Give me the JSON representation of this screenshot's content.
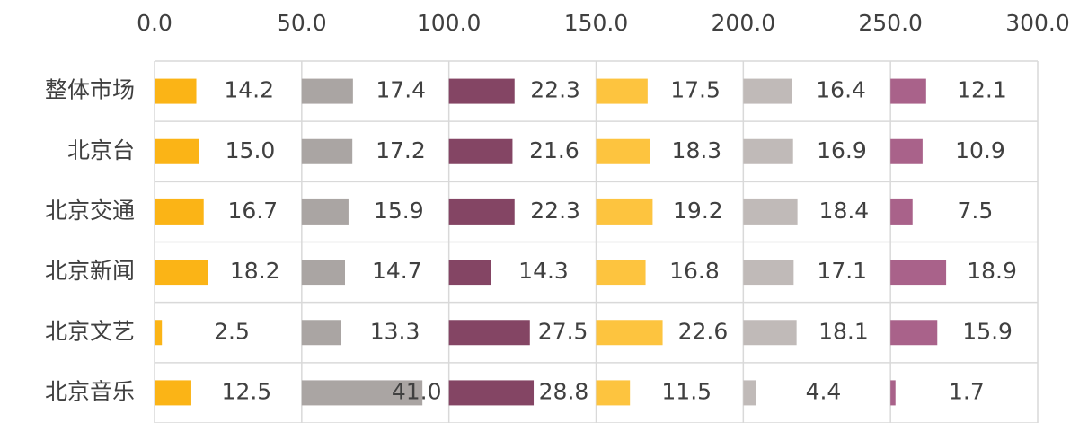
{
  "chart_data": {
    "type": "bar",
    "categories": [
      "整体市场",
      "北京台",
      "北京交通",
      "北京新闻",
      "北京文艺",
      "北京音乐"
    ],
    "series": [
      {
        "color": "#fbb416",
        "values": [
          14.2,
          15.0,
          16.7,
          18.2,
          2.5,
          12.5
        ],
        "value_labels": [
          "14.2",
          "15.0",
          "16.7",
          "18.2",
          "2.5",
          "12.5"
        ]
      },
      {
        "color": "#aaa5a3",
        "values": [
          17.4,
          17.2,
          15.9,
          14.7,
          13.3,
          41.0
        ],
        "value_labels": [
          "17.4",
          "17.2",
          "15.9",
          "14.7",
          "13.3",
          "41.0"
        ]
      },
      {
        "color": "#844564",
        "values": [
          22.3,
          21.6,
          22.3,
          14.3,
          27.5,
          28.8
        ],
        "value_labels": [
          "22.3",
          "21.6",
          "22.3",
          "14.3",
          "27.5",
          "28.8"
        ]
      },
      {
        "color": "#fdc43f",
        "values": [
          17.5,
          18.3,
          19.2,
          16.8,
          22.6,
          11.5
        ],
        "value_labels": [
          "17.5",
          "18.3",
          "19.2",
          "16.8",
          "22.6",
          "11.5"
        ]
      },
      {
        "color": "#c0bab8",
        "values": [
          16.4,
          16.9,
          18.4,
          17.1,
          18.1,
          4.4
        ],
        "value_labels": [
          "16.4",
          "16.9",
          "18.4",
          "17.1",
          "18.1",
          "4.4"
        ]
      },
      {
        "color": "#a9628a",
        "values": [
          12.1,
          10.9,
          7.5,
          18.9,
          15.9,
          1.7
        ],
        "value_labels": [
          "12.1",
          "10.9",
          "7.5",
          "18.9",
          "15.9",
          "1.7"
        ]
      }
    ],
    "xlim": [
      0,
      300
    ],
    "xticks": [
      {
        "value": 0,
        "label": "0.0"
      },
      {
        "value": 50,
        "label": "50.0"
      },
      {
        "value": 100,
        "label": "100.0"
      },
      {
        "value": 150,
        "label": "150.0"
      },
      {
        "value": 200,
        "label": "200.0"
      },
      {
        "value": 250,
        "label": "250.0"
      },
      {
        "value": 300,
        "label": "300.0"
      }
    ],
    "grid": true
  }
}
